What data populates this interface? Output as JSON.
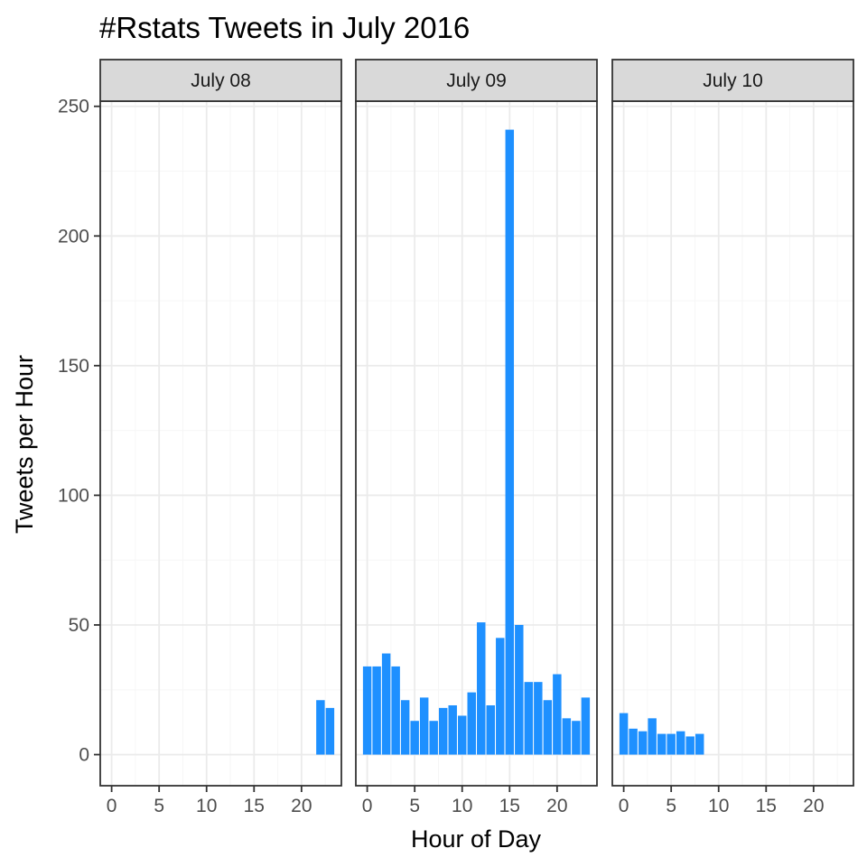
{
  "chart_data": {
    "type": "bar",
    "title": "#Rstats Tweets in July 2016",
    "xlabel": "Hour of Day",
    "ylabel": "Tweets per Hour",
    "xlim": [
      -1.2,
      24.2
    ],
    "ylim": [
      -12,
      252
    ],
    "x_ticks": [
      0,
      5,
      10,
      15,
      20
    ],
    "y_ticks": [
      0,
      50,
      100,
      150,
      200,
      250
    ],
    "bar_color": "#1e90ff",
    "grid": true,
    "facets": [
      {
        "label": "July 08",
        "bars": [
          {
            "x": 22,
            "y": 21
          },
          {
            "x": 23,
            "y": 18
          }
        ]
      },
      {
        "label": "July 09",
        "bars": [
          {
            "x": 0,
            "y": 34
          },
          {
            "x": 1,
            "y": 34
          },
          {
            "x": 2,
            "y": 39
          },
          {
            "x": 3,
            "y": 34
          },
          {
            "x": 4,
            "y": 21
          },
          {
            "x": 5,
            "y": 13
          },
          {
            "x": 6,
            "y": 22
          },
          {
            "x": 7,
            "y": 13
          },
          {
            "x": 8,
            "y": 18
          },
          {
            "x": 9,
            "y": 19
          },
          {
            "x": 10,
            "y": 15
          },
          {
            "x": 11,
            "y": 24
          },
          {
            "x": 12,
            "y": 51
          },
          {
            "x": 13,
            "y": 19
          },
          {
            "x": 14,
            "y": 45
          },
          {
            "x": 15,
            "y": 241
          },
          {
            "x": 16,
            "y": 50
          },
          {
            "x": 17,
            "y": 28
          },
          {
            "x": 18,
            "y": 28
          },
          {
            "x": 19,
            "y": 21
          },
          {
            "x": 20,
            "y": 31
          },
          {
            "x": 21,
            "y": 14
          },
          {
            "x": 22,
            "y": 13
          },
          {
            "x": 23,
            "y": 22
          }
        ]
      },
      {
        "label": "July 10",
        "bars": [
          {
            "x": 0,
            "y": 16
          },
          {
            "x": 1,
            "y": 10
          },
          {
            "x": 2,
            "y": 9
          },
          {
            "x": 3,
            "y": 14
          },
          {
            "x": 4,
            "y": 8
          },
          {
            "x": 5,
            "y": 8
          },
          {
            "x": 6,
            "y": 9
          },
          {
            "x": 7,
            "y": 7
          },
          {
            "x": 8,
            "y": 8
          }
        ]
      }
    ]
  }
}
